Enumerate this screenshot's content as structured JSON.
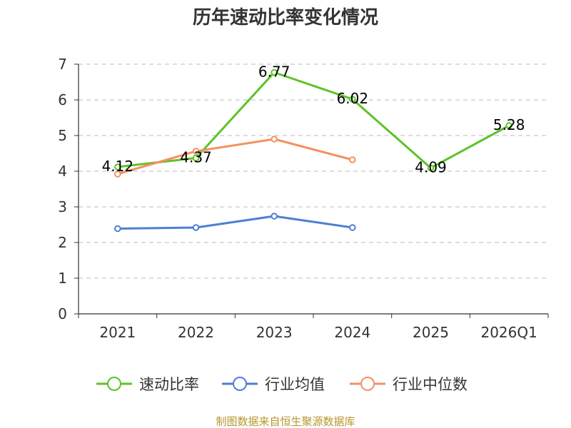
{
  "chart_data": {
    "type": "line",
    "title": "历年速动比率变化情况",
    "categories": [
      "2021",
      "2022",
      "2023",
      "2024",
      "2025",
      "2026Q1"
    ],
    "ylim": [
      0,
      7
    ],
    "yticks": [
      0,
      1,
      2,
      3,
      4,
      5,
      6,
      7
    ],
    "grid": true,
    "legend_position": "bottom",
    "series": [
      {
        "name": "速动比率",
        "color": "#5ec229",
        "values": [
          4.12,
          4.37,
          6.77,
          6.02,
          4.09,
          5.28
        ],
        "show_labels": true,
        "connect_gap": false
      },
      {
        "name": "行业均值",
        "color": "#4f7fd6",
        "values": [
          2.39,
          2.42,
          2.74,
          2.42,
          null,
          null
        ],
        "show_labels": false
      },
      {
        "name": "行业中位数",
        "color": "#f59062",
        "values": [
          3.92,
          4.56,
          4.9,
          4.32,
          null,
          null
        ],
        "show_labels": false
      }
    ]
  },
  "source": "制图数据来自恒生聚源数据库"
}
